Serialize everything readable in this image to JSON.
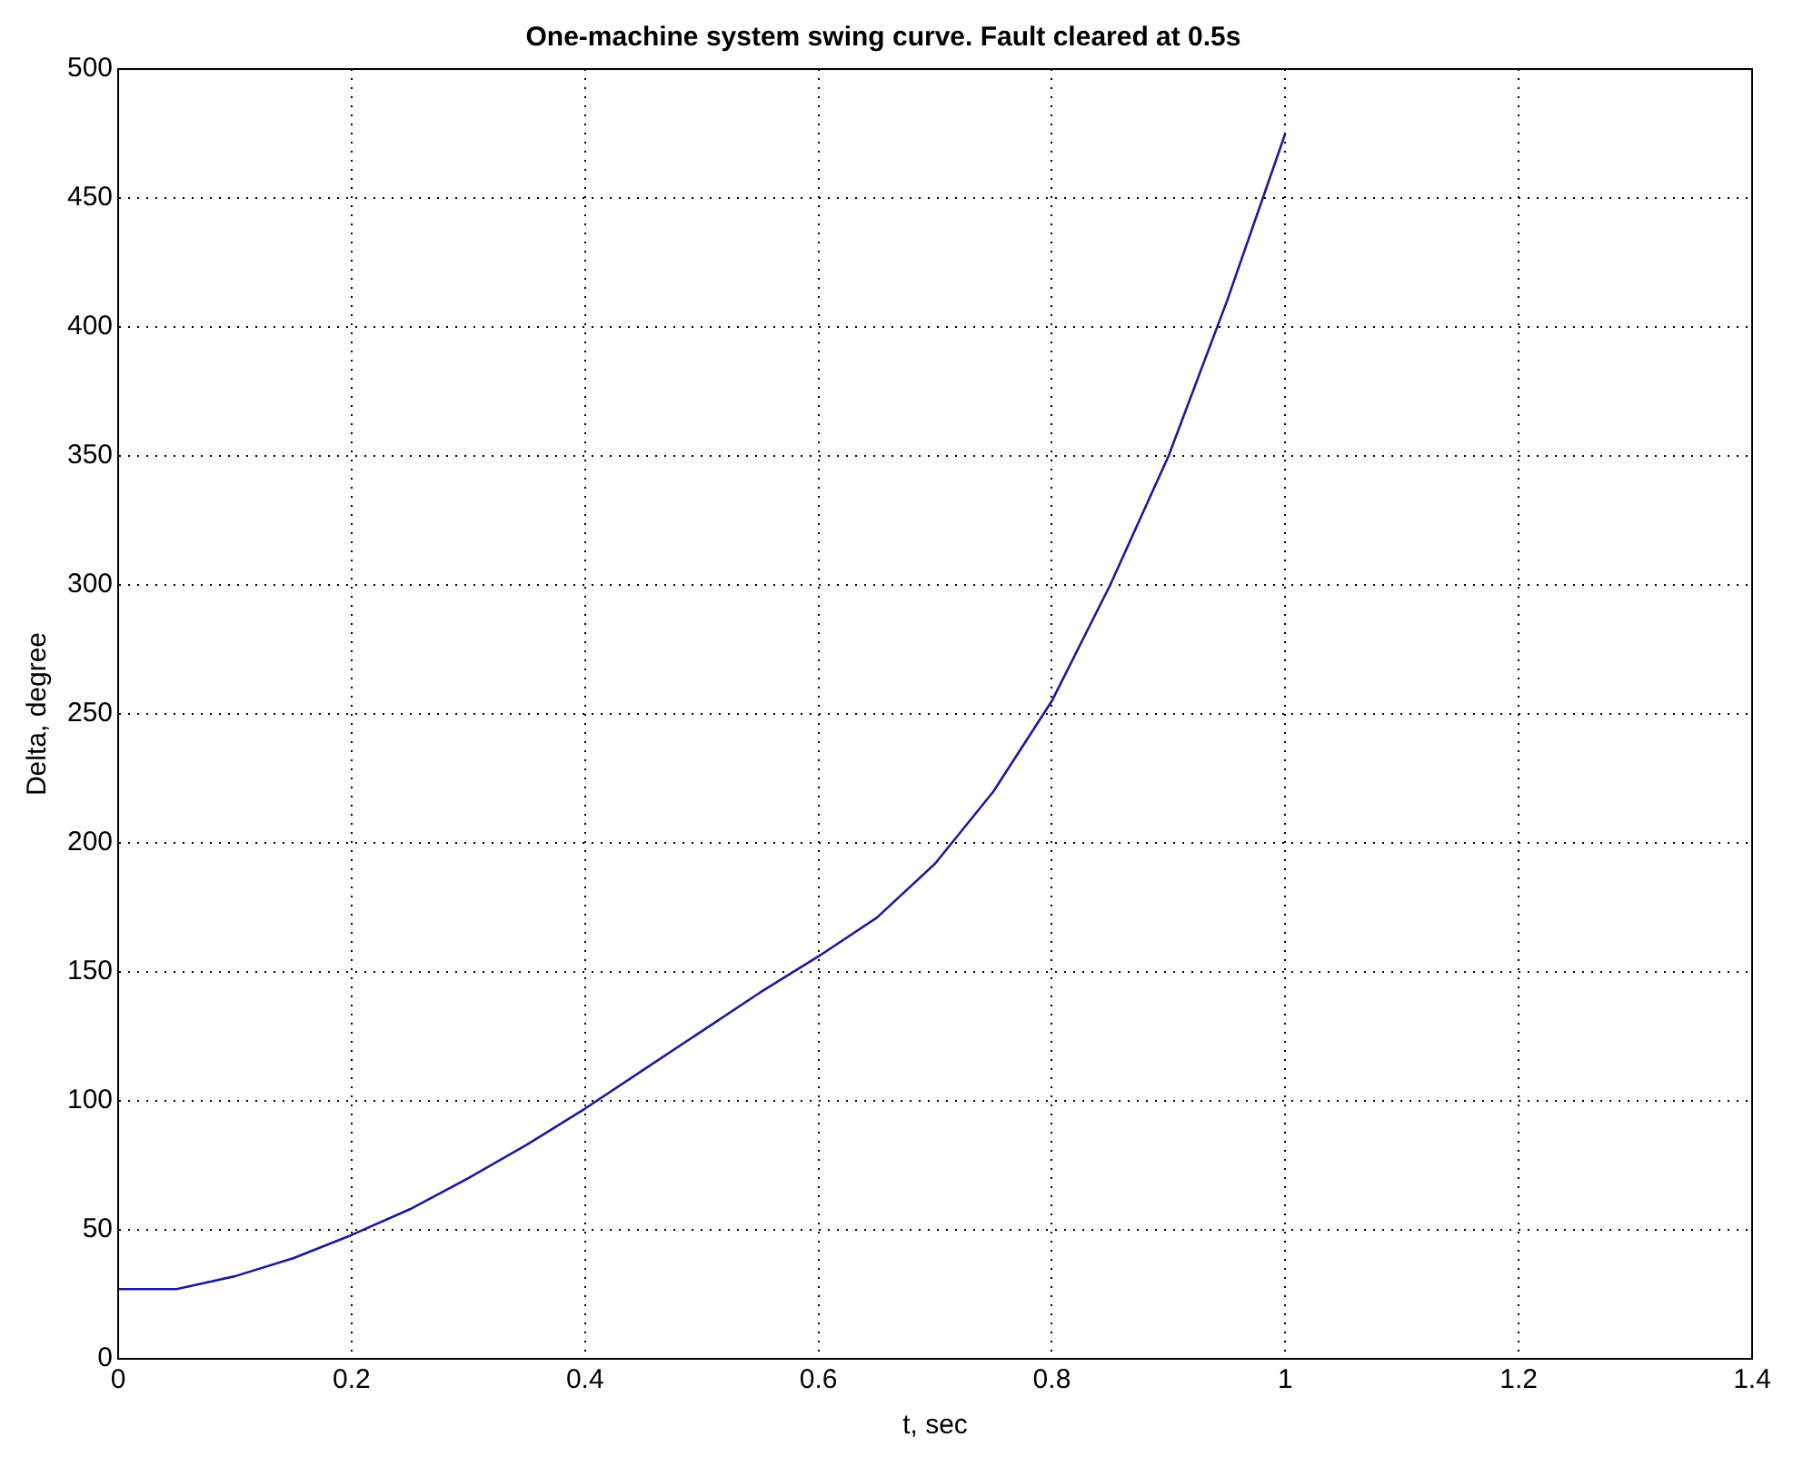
{
  "chart_data": {
    "type": "line",
    "title": "One-machine system swing curve. Fault cleared at 0.5s",
    "xlabel": "t, sec",
    "ylabel": "Delta, degree",
    "x": [
      0,
      0.05,
      0.1,
      0.15,
      0.2,
      0.25,
      0.3,
      0.35,
      0.4,
      0.45,
      0.5,
      0.55,
      0.6,
      0.65,
      0.7,
      0.75,
      0.8,
      0.85,
      0.9,
      0.95,
      1.0
    ],
    "series": [
      {
        "color": "#1a1a9a",
        "values": [
          27,
          27,
          32,
          39,
          48,
          58,
          70,
          83,
          97,
          112,
          127,
          142,
          156,
          171,
          192,
          220,
          255,
          300,
          350,
          410,
          475
        ]
      }
    ],
    "xlim": [
      0,
      1.4
    ],
    "xticks": [
      0,
      0.2,
      0.4,
      0.6,
      0.8,
      1,
      1.2,
      1.4
    ],
    "ylim": [
      0,
      500
    ],
    "yticks": [
      0,
      50,
      100,
      150,
      200,
      250,
      300,
      350,
      400,
      450,
      500
    ],
    "grid": true,
    "legend": false,
    "marker": "none",
    "line_style": "solid"
  }
}
